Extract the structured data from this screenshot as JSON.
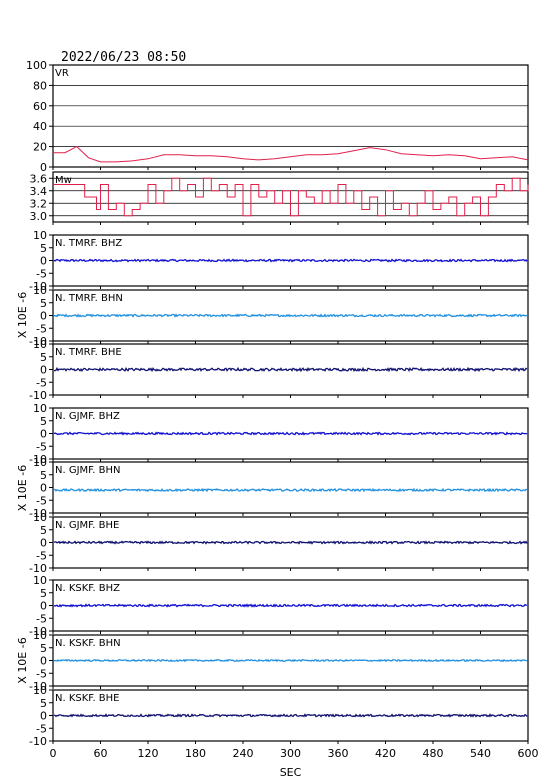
{
  "title": "2022/06/23  08:50",
  "chart_data": {
    "type": "line",
    "xlabel": "SEC",
    "x_ticks": [
      0,
      60,
      120,
      180,
      240,
      300,
      360,
      420,
      480,
      540,
      600
    ],
    "xlim": [
      0,
      600
    ],
    "panels": [
      {
        "name": "VR",
        "kind": "vr",
        "ylim": [
          0,
          100
        ],
        "y_ticks": [
          0,
          20,
          40,
          60,
          80,
          100
        ],
        "grid": true,
        "color": "#e0204a",
        "points_x": [
          0,
          15,
          30,
          45,
          60,
          80,
          100,
          120,
          140,
          160,
          180,
          200,
          220,
          240,
          260,
          280,
          300,
          320,
          340,
          360,
          380,
          400,
          420,
          440,
          460,
          480,
          500,
          520,
          540,
          560,
          580,
          600
        ],
        "points_y": [
          14,
          14,
          20,
          9,
          5,
          5,
          6,
          8,
          12,
          12,
          11,
          11,
          10,
          8,
          7,
          8,
          10,
          12,
          12,
          13,
          16,
          19,
          17,
          13,
          12,
          11,
          12,
          11,
          8,
          9,
          10,
          7
        ]
      },
      {
        "name": "Mw",
        "kind": "mw",
        "ylim": [
          2.9,
          3.7
        ],
        "y_ticks": [
          3.0,
          3.2,
          3.4,
          3.6
        ],
        "y_tick_labels": [
          "3.0",
          "3.2",
          "3.4",
          "3.6"
        ],
        "grid": true,
        "color": "#e0204a",
        "points_x": [
          0,
          20,
          40,
          50,
          55,
          60,
          70,
          80,
          90,
          100,
          110,
          120,
          130,
          140,
          150,
          160,
          170,
          180,
          190,
          200,
          210,
          220,
          230,
          240,
          250,
          260,
          270,
          280,
          290,
          300,
          310,
          320,
          330,
          340,
          350,
          360,
          370,
          380,
          390,
          400,
          410,
          420,
          430,
          440,
          450,
          460,
          470,
          480,
          490,
          500,
          510,
          520,
          530,
          540,
          550,
          560,
          570,
          580,
          590,
          600
        ],
        "points_y": [
          3.5,
          3.5,
          3.3,
          3.3,
          3.1,
          3.5,
          3.1,
          3.2,
          3.0,
          3.1,
          3.2,
          3.5,
          3.2,
          3.4,
          3.6,
          3.4,
          3.5,
          3.3,
          3.6,
          3.4,
          3.5,
          3.3,
          3.5,
          3.0,
          3.5,
          3.3,
          3.4,
          3.2,
          3.4,
          3.0,
          3.4,
          3.3,
          3.2,
          3.4,
          3.2,
          3.5,
          3.2,
          3.4,
          3.1,
          3.3,
          3.0,
          3.4,
          3.1,
          3.2,
          3.0,
          3.2,
          3.4,
          3.1,
          3.2,
          3.3,
          3.0,
          3.2,
          3.3,
          3.0,
          3.3,
          3.5,
          3.4,
          3.6,
          3.4,
          3.5
        ]
      },
      {
        "name": "N. TMRF. BHZ",
        "kind": "wave",
        "ylim": [
          -10,
          10
        ],
        "y_ticks": [
          -10,
          -5,
          0,
          5,
          10
        ],
        "color": "#1010d0",
        "noise": 0.4,
        "offset": 0
      },
      {
        "name": "N. TMRF. BHN",
        "kind": "wave",
        "ylim": [
          -10,
          10
        ],
        "y_ticks": [
          -10,
          -5,
          0,
          5,
          10
        ],
        "color": "#2090e0",
        "noise": 0.4,
        "offset": 0
      },
      {
        "name": "N. TMRF. BHE",
        "kind": "wave",
        "ylim": [
          -10,
          10
        ],
        "y_ticks": [
          -10,
          -5,
          0,
          5,
          10
        ],
        "color": "#101070",
        "noise": 0.5,
        "offset": 0
      },
      {
        "name": "N. GJMF. BHZ",
        "kind": "wave",
        "ylim": [
          -10,
          10
        ],
        "y_ticks": [
          -10,
          -5,
          0,
          5,
          10
        ],
        "color": "#1010d0",
        "noise": 0.4,
        "offset": 0
      },
      {
        "name": "N. GJMF. BHN",
        "kind": "wave",
        "ylim": [
          -10,
          10
        ],
        "y_ticks": [
          -10,
          -5,
          0,
          5,
          10
        ],
        "color": "#2090e0",
        "noise": 0.4,
        "offset": -1
      },
      {
        "name": "N. GJMF. BHE",
        "kind": "wave",
        "ylim": [
          -10,
          10
        ],
        "y_ticks": [
          -10,
          -5,
          0,
          5,
          10
        ],
        "color": "#101070",
        "noise": 0.4,
        "offset": 0
      },
      {
        "name": "N. KSKF. BHZ",
        "kind": "wave",
        "ylim": [
          -10,
          10
        ],
        "y_ticks": [
          -10,
          -5,
          0,
          5,
          10
        ],
        "color": "#1010d0",
        "noise": 0.4,
        "offset": 0
      },
      {
        "name": "N. KSKF. BHN",
        "kind": "wave",
        "ylim": [
          -10,
          10
        ],
        "y_ticks": [
          -10,
          -5,
          0,
          5,
          10
        ],
        "color": "#2090e0",
        "noise": 0.3,
        "offset": 0
      },
      {
        "name": "N. KSKF. BHE",
        "kind": "wave",
        "ylim": [
          -10,
          10
        ],
        "y_ticks": [
          -10,
          -5,
          0,
          5,
          10
        ],
        "color": "#101070",
        "noise": 0.4,
        "offset": 0
      }
    ],
    "ylabel_groups": [
      {
        "label": "X 10E -6",
        "panels": [
          2,
          3,
          4
        ]
      },
      {
        "label": "X 10E -6",
        "panels": [
          5,
          6,
          7
        ]
      },
      {
        "label": "X 10E -6",
        "panels": [
          8,
          9,
          10
        ]
      }
    ]
  }
}
